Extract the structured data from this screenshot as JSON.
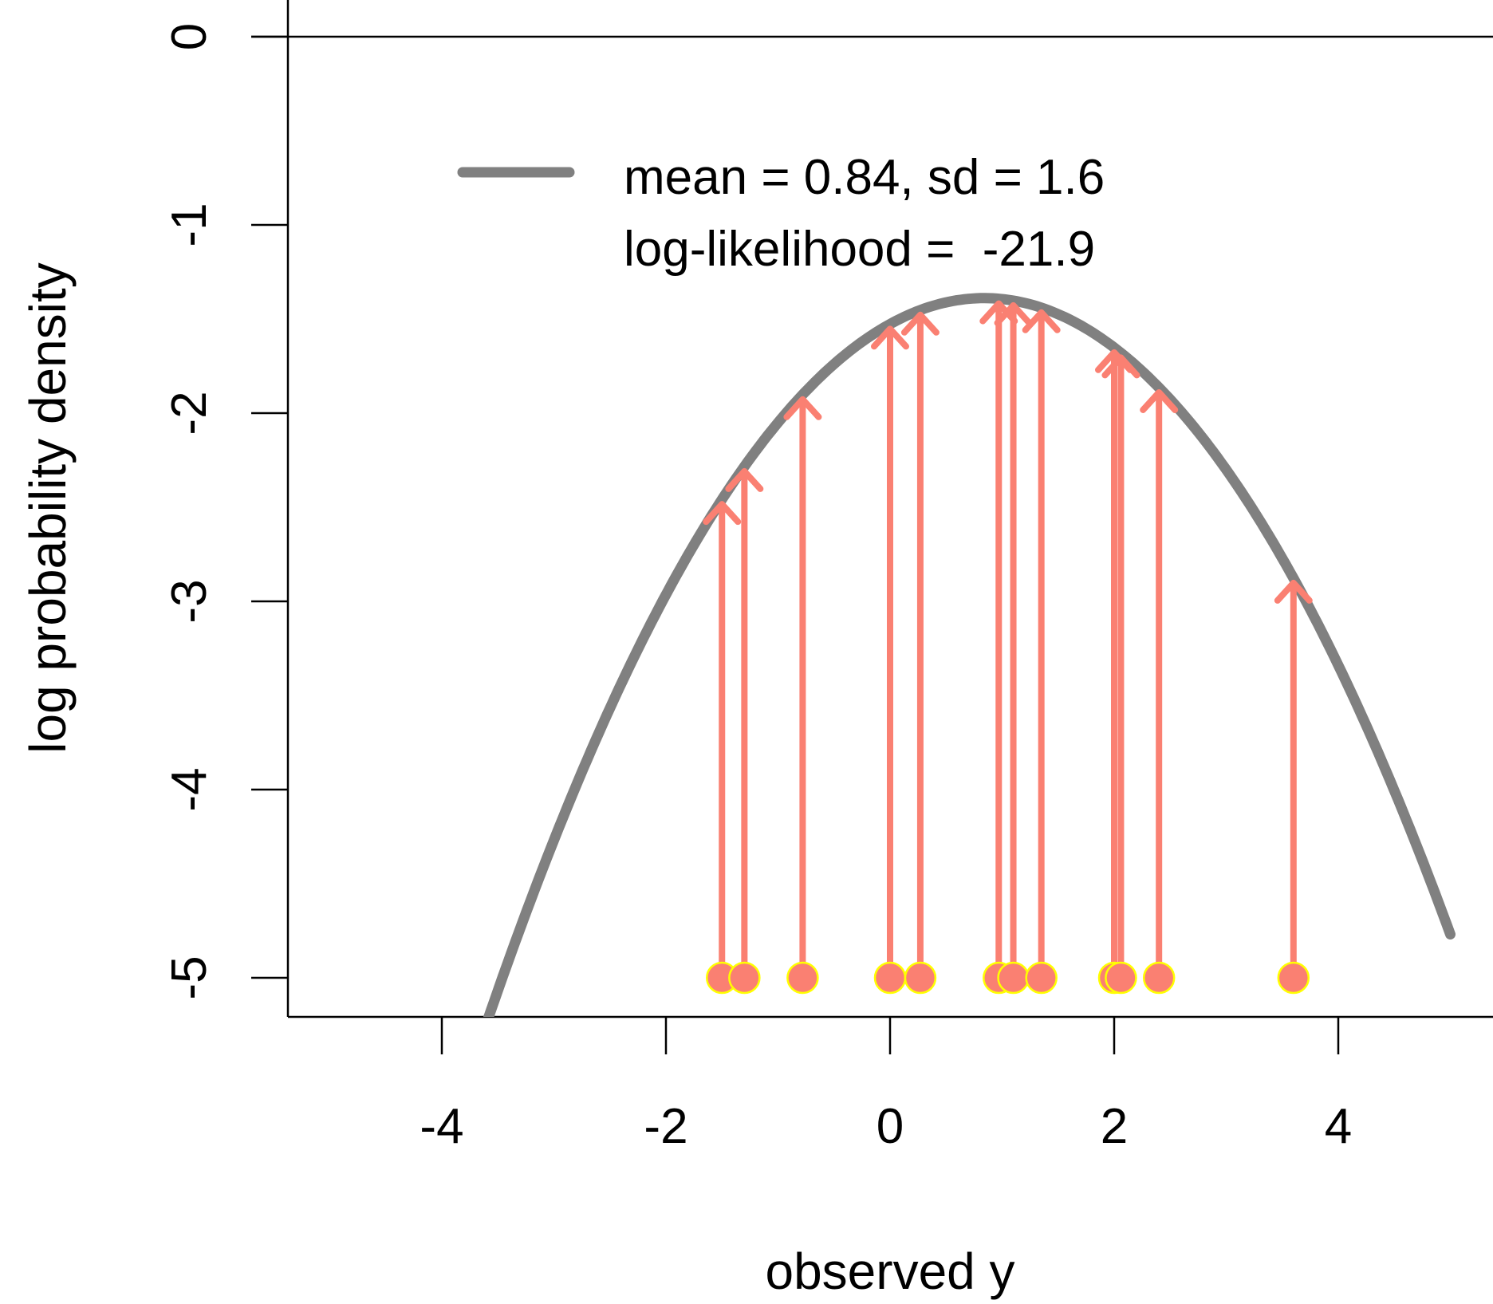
{
  "chart_data": {
    "type": "line",
    "title": "",
    "xlabel": "observed y",
    "ylabel": "log probability density",
    "xlim": [
      -5.3,
      5.3
    ],
    "ylim": [
      -5.2,
      0.1
    ],
    "x_ticks": [
      -4,
      -2,
      0,
      2,
      4
    ],
    "x_tick_labels": [
      "-4",
      "-2",
      "0",
      "2",
      "4"
    ],
    "y_ticks": [
      0,
      -1,
      -2,
      -3,
      -4,
      -5
    ],
    "y_tick_labels": [
      "0",
      "-1",
      "-2",
      "-3",
      "-4",
      "-5"
    ],
    "reference_line_y": 0,
    "grid": false,
    "legend_position": "top",
    "curve": {
      "mean": 0.84,
      "sd": 1.6,
      "x_range": [
        -3.6,
        5.0
      ],
      "color": "#808080"
    },
    "observations": {
      "baseline_y": -5,
      "x": [
        -1.5,
        -1.3,
        -0.78,
        0.0,
        0.27,
        0.97,
        1.1,
        1.35,
        2.0,
        2.06,
        2.4,
        3.6
      ],
      "arrow_color": "#fa8072",
      "point_fill": "#fa8072",
      "point_stroke": "#ffff00"
    },
    "legend": {
      "line_label": "mean = 0.84, sd = 1.6",
      "loglik_label": "log-likelihood =  -21.9"
    }
  }
}
